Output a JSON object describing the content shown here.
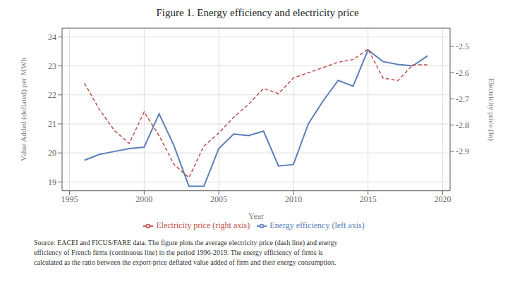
{
  "chart_data": {
    "type": "line",
    "title": "Figure 1. Energy efficiency and electricity price",
    "x_label": "Year",
    "y_label": "Value Added (deflated) per MWh",
    "y2_label": "Electricity price (ln)",
    "x": [
      1996,
      1997,
      1998,
      1999,
      2000,
      2001,
      2002,
      2003,
      2004,
      2005,
      2006,
      2007,
      2008,
      2009,
      2010,
      2011,
      2012,
      2013,
      2014,
      2015,
      2016,
      2017,
      2018,
      2019
    ],
    "xlim": [
      1994.5,
      2020.5
    ],
    "xticks": [
      1995,
      2000,
      2005,
      2010,
      2015,
      2020
    ],
    "ylim": [
      18.7,
      24.3
    ],
    "yticks": [
      19,
      20,
      21,
      22,
      23,
      24
    ],
    "y2lim": [
      -3.05,
      -2.43
    ],
    "y2ticks": [
      -2.9,
      -2.8,
      -2.7,
      -2.6,
      -2.5
    ],
    "grid": true,
    "legend": "bottom",
    "series": [
      {
        "name": "Energy efficiency (left axis)",
        "color": "#5b7fbb",
        "line_style": "solid",
        "axis": "y",
        "values": [
          19.75,
          19.95,
          20.05,
          20.15,
          20.2,
          21.35,
          20.25,
          18.85,
          18.85,
          20.15,
          20.65,
          20.6,
          20.75,
          19.55,
          19.6,
          21.0,
          21.8,
          22.5,
          22.3,
          23.55,
          23.15,
          23.05,
          23.0,
          23.35
        ]
      },
      {
        "name": "Electricity price (right axis)",
        "color": "#c0504d",
        "line_style": "dashed",
        "axis": "y2",
        "values": [
          -2.64,
          -2.74,
          -2.82,
          -2.87,
          -2.75,
          -2.84,
          -2.95,
          -3.0,
          -2.88,
          -2.83,
          -2.77,
          -2.72,
          -2.66,
          -2.68,
          -2.62,
          -2.6,
          -2.58,
          -2.56,
          -2.55,
          -2.51,
          -2.62,
          -2.63,
          -2.57,
          -2.57
        ]
      }
    ],
    "annotations": [
      "Source: EACEI and FICUS/FARE data. The figure plots the average electricity price (dash line) and energy\nefficiency of French firms (continuous line) in the period 1996-2019. The energy efficiency of firms is\ncalculated as the ratio between the export-price deflated value added of firm and their energy consumption."
    ]
  }
}
